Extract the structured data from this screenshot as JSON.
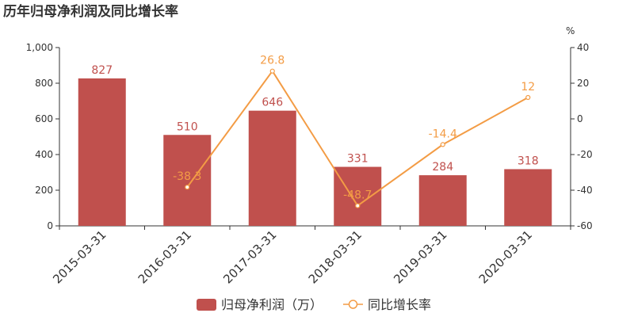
{
  "chart_data": {
    "type": "bar+line",
    "title": "历年归母净利润及同比增长率",
    "categories": [
      "2015-03-31",
      "2016-03-31",
      "2017-03-31",
      "2018-03-31",
      "2019-03-31",
      "2020-03-31"
    ],
    "series": [
      {
        "name": "归母净利润（万）",
        "type": "bar",
        "axis": "left",
        "values": [
          827,
          510,
          646,
          331,
          284,
          318
        ]
      },
      {
        "name": "同比增长率",
        "type": "line",
        "axis": "right",
        "values": [
          null,
          -38.3,
          26.8,
          -48.7,
          -14.4,
          12
        ]
      }
    ],
    "y_left": {
      "ylim": [
        0,
        1000
      ],
      "ticks": [
        "0",
        "200",
        "400",
        "600",
        "800",
        "1,000"
      ]
    },
    "y_right": {
      "ylim": [
        -60,
        40
      ],
      "ticks": [
        "-60",
        "-40",
        "-20",
        "0",
        "20",
        "40"
      ],
      "unit": "%"
    },
    "grid": false,
    "legend_position": "bottom-center",
    "colors": {
      "bar": "#c0504d",
      "line": "#f39c45",
      "axis": "#333333"
    }
  }
}
